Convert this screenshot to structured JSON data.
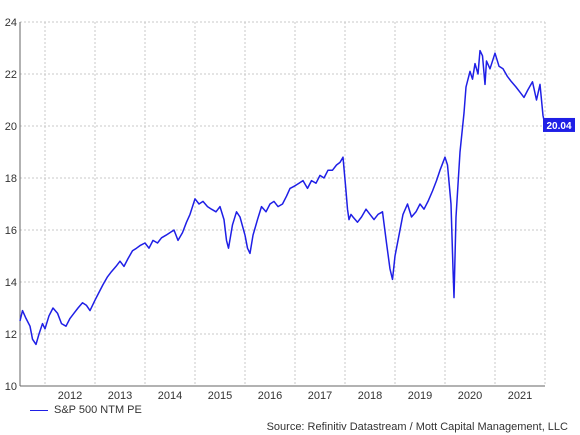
{
  "chart_data": {
    "type": "line",
    "title": "",
    "xlabel": "",
    "ylabel": "",
    "ylim": [
      10,
      24
    ],
    "xlim": [
      2011.5,
      2022.0
    ],
    "yticks": [
      10,
      12,
      14,
      16,
      18,
      20,
      22,
      24
    ],
    "xticks": [
      "2012",
      "2013",
      "2014",
      "2015",
      "2016",
      "2017",
      "2018",
      "2019",
      "2020",
      "2021"
    ],
    "grid": true,
    "line_color": "#1f1fe6",
    "series": [
      {
        "name": "S&P 500 NTM PE",
        "x": [
          2011.5,
          2011.55,
          2011.62,
          2011.7,
          2011.75,
          2011.82,
          2011.88,
          2011.95,
          2012.0,
          2012.08,
          2012.16,
          2012.25,
          2012.33,
          2012.42,
          2012.5,
          2012.58,
          2012.66,
          2012.75,
          2012.83,
          2012.9,
          2013.0,
          2013.08,
          2013.16,
          2013.25,
          2013.33,
          2013.42,
          2013.5,
          2013.58,
          2013.66,
          2013.75,
          2013.83,
          2013.9,
          2014.0,
          2014.08,
          2014.16,
          2014.25,
          2014.33,
          2014.42,
          2014.5,
          2014.58,
          2014.66,
          2014.75,
          2014.83,
          2014.9,
          2015.0,
          2015.08,
          2015.16,
          2015.25,
          2015.33,
          2015.42,
          2015.5,
          2015.58,
          2015.63,
          2015.67,
          2015.75,
          2015.83,
          2015.9,
          2016.0,
          2016.05,
          2016.1,
          2016.16,
          2016.25,
          2016.33,
          2016.42,
          2016.5,
          2016.58,
          2016.66,
          2016.75,
          2016.83,
          2016.9,
          2017.0,
          2017.08,
          2017.16,
          2017.25,
          2017.33,
          2017.42,
          2017.5,
          2017.58,
          2017.66,
          2017.75,
          2017.83,
          2017.9,
          2017.96,
          2018.02,
          2018.05,
          2018.08,
          2018.12,
          2018.16,
          2018.25,
          2018.33,
          2018.42,
          2018.5,
          2018.58,
          2018.66,
          2018.75,
          2018.83,
          2018.9,
          2018.95,
          2019.0,
          2019.08,
          2019.16,
          2019.25,
          2019.33,
          2019.42,
          2019.5,
          2019.58,
          2019.66,
          2019.75,
          2019.83,
          2019.9,
          2020.0,
          2020.05,
          2020.12,
          2020.16,
          2020.18,
          2020.22,
          2020.3,
          2020.38,
          2020.42,
          2020.5,
          2020.55,
          2020.6,
          2020.66,
          2020.7,
          2020.75,
          2020.8,
          2020.83,
          2020.9,
          2021.0,
          2021.08,
          2021.16,
          2021.25,
          2021.33,
          2021.42,
          2021.5,
          2021.58,
          2021.66,
          2021.75,
          2021.83,
          2021.9,
          2021.96,
          2022.0
        ],
        "values": [
          12.5,
          12.9,
          12.6,
          12.3,
          11.8,
          11.6,
          12.0,
          12.4,
          12.2,
          12.7,
          13.0,
          12.8,
          12.4,
          12.3,
          12.6,
          12.8,
          13.0,
          13.2,
          13.1,
          12.9,
          13.3,
          13.6,
          13.9,
          14.2,
          14.4,
          14.6,
          14.8,
          14.6,
          14.9,
          15.2,
          15.3,
          15.4,
          15.5,
          15.3,
          15.6,
          15.5,
          15.7,
          15.8,
          15.9,
          16.0,
          15.6,
          15.9,
          16.3,
          16.6,
          17.2,
          17.0,
          17.1,
          16.9,
          16.8,
          16.7,
          16.9,
          16.4,
          15.6,
          15.3,
          16.2,
          16.7,
          16.5,
          15.8,
          15.3,
          15.1,
          15.8,
          16.4,
          16.9,
          16.7,
          17.0,
          17.1,
          16.9,
          17.0,
          17.3,
          17.6,
          17.7,
          17.8,
          17.9,
          17.6,
          17.9,
          17.8,
          18.1,
          18.0,
          18.3,
          18.3,
          18.5,
          18.6,
          18.8,
          17.5,
          16.8,
          16.4,
          16.6,
          16.5,
          16.3,
          16.5,
          16.8,
          16.6,
          16.4,
          16.6,
          16.7,
          15.5,
          14.5,
          14.1,
          15.0,
          15.8,
          16.6,
          17.0,
          16.5,
          16.7,
          17.0,
          16.8,
          17.1,
          17.5,
          17.9,
          18.3,
          18.8,
          18.5,
          17.0,
          14.5,
          13.4,
          16.5,
          19.0,
          20.5,
          21.5,
          22.1,
          21.8,
          22.4,
          22.0,
          22.9,
          22.7,
          21.6,
          22.5,
          22.2,
          22.8,
          22.3,
          22.2,
          21.9,
          21.7,
          21.5,
          21.3,
          21.1,
          21.4,
          21.7,
          21.0,
          21.6,
          20.4,
          20.04
        ]
      }
    ],
    "end_label": "20.04"
  },
  "legend": {
    "label": "S&P 500 NTM PE"
  },
  "source": "Source: Refinitiv Datastream / Mott Capital Management, LLC"
}
